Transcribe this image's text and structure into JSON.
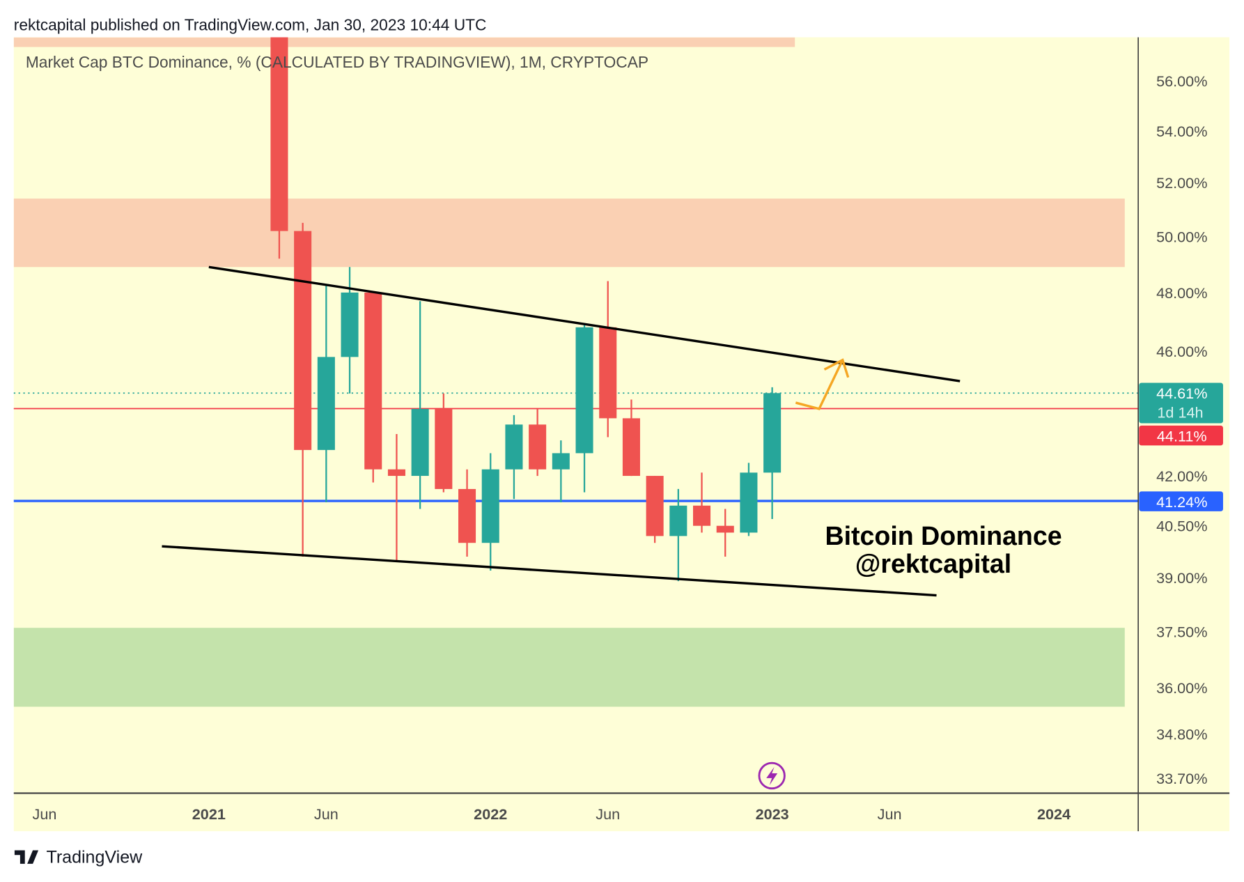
{
  "header": {
    "published": "rektcapital published on TradingView.com, Jan 30, 2023 10:44 UTC"
  },
  "footer": {
    "brand": "TradingView"
  },
  "colors": {
    "background": "#fefed7",
    "up": "#26a69a",
    "down": "#ef5350",
    "last_price": "#26a69a",
    "red_level": "#f23645",
    "blue_level": "#2962ff",
    "resistance_zone": "#fad0b3",
    "support_zone": "#c4e3ab",
    "arrow": "#f5a623"
  },
  "chart_data": {
    "type": "candlestick",
    "title": "Market Cap BTC Dominance, % (CALCULATED BY TRADINGVIEW), 1M, CRYPTOCAP",
    "timeframe": "1M",
    "y_scale": "log",
    "ylim": [
      33.4,
      57.8
    ],
    "y_ticks": [
      "56.00%",
      "54.00%",
      "52.00%",
      "50.00%",
      "48.00%",
      "46.00%",
      "42.00%",
      "40.50%",
      "39.00%",
      "37.50%",
      "36.00%",
      "34.80%",
      "33.70%"
    ],
    "y_tick_values": [
      56,
      54,
      52,
      50,
      48,
      46,
      42,
      40.5,
      39,
      37.5,
      36,
      34.8,
      33.7
    ],
    "x_ticks": [
      {
        "label": "Jun",
        "date": "2020-06",
        "bold": false
      },
      {
        "label": "2021",
        "date": "2021-01",
        "bold": true
      },
      {
        "label": "Jun",
        "date": "2021-06",
        "bold": false
      },
      {
        "label": "2022",
        "date": "2022-01",
        "bold": true
      },
      {
        "label": "Jun",
        "date": "2022-06",
        "bold": false
      },
      {
        "label": "2023",
        "date": "2023-01",
        "bold": true
      },
      {
        "label": "Jun",
        "date": "2023-06",
        "bold": false
      },
      {
        "label": "2024",
        "date": "2024-01",
        "bold": true
      }
    ],
    "candles": [
      {
        "date": "2021-04",
        "open": 61.0,
        "high": 62.0,
        "low": 49.2,
        "close": 50.2
      },
      {
        "date": "2021-05",
        "open": 50.2,
        "high": 50.5,
        "low": 39.6,
        "close": 42.8
      },
      {
        "date": "2021-06",
        "open": 42.8,
        "high": 48.3,
        "low": 41.2,
        "close": 45.8
      },
      {
        "date": "2021-07",
        "open": 45.8,
        "high": 48.9,
        "low": 44.6,
        "close": 48.0
      },
      {
        "date": "2021-08",
        "open": 48.0,
        "high": 48.0,
        "low": 41.8,
        "close": 42.2
      },
      {
        "date": "2021-09",
        "open": 42.2,
        "high": 43.3,
        "low": 39.5,
        "close": 42.0
      },
      {
        "date": "2021-10",
        "open": 42.0,
        "high": 47.7,
        "low": 41.0,
        "close": 44.1
      },
      {
        "date": "2021-11",
        "open": 44.1,
        "high": 44.6,
        "low": 41.5,
        "close": 41.6
      },
      {
        "date": "2021-12",
        "open": 41.6,
        "high": 42.2,
        "low": 39.6,
        "close": 40.0
      },
      {
        "date": "2022-01",
        "open": 40.0,
        "high": 42.7,
        "low": 39.2,
        "close": 42.2
      },
      {
        "date": "2022-02",
        "open": 42.2,
        "high": 43.9,
        "low": 41.3,
        "close": 43.6
      },
      {
        "date": "2022-03",
        "open": 43.6,
        "high": 44.1,
        "low": 42.0,
        "close": 42.2
      },
      {
        "date": "2022-04",
        "open": 42.2,
        "high": 43.1,
        "low": 41.2,
        "close": 42.7
      },
      {
        "date": "2022-05",
        "open": 42.7,
        "high": 46.9,
        "low": 41.5,
        "close": 46.8
      },
      {
        "date": "2022-06",
        "open": 46.8,
        "high": 48.4,
        "low": 43.2,
        "close": 43.8
      },
      {
        "date": "2022-07",
        "open": 43.8,
        "high": 44.4,
        "low": 42.0,
        "close": 42.0
      },
      {
        "date": "2022-08",
        "open": 42.0,
        "high": 42.0,
        "low": 40.0,
        "close": 40.2
      },
      {
        "date": "2022-09",
        "open": 40.2,
        "high": 41.6,
        "low": 38.9,
        "close": 41.1
      },
      {
        "date": "2022-10",
        "open": 41.1,
        "high": 42.1,
        "low": 40.3,
        "close": 40.5
      },
      {
        "date": "2022-11",
        "open": 40.5,
        "high": 41.0,
        "low": 39.6,
        "close": 40.3
      },
      {
        "date": "2022-12",
        "open": 40.3,
        "high": 42.4,
        "low": 40.2,
        "close": 42.1
      },
      {
        "date": "2023-01",
        "open": 42.1,
        "high": 44.8,
        "low": 40.7,
        "close": 44.61
      }
    ],
    "zones": [
      {
        "name": "resistance",
        "from": 48.9,
        "to": 51.4,
        "color": "#fad0b3"
      },
      {
        "name": "support",
        "from": 35.5,
        "to": 37.6,
        "color": "#c4e3ab"
      },
      {
        "name": "top",
        "from": 57.4,
        "to": 57.8,
        "color": "#fad0b3"
      }
    ],
    "trendlines": [
      {
        "name": "upper",
        "start": {
          "date": "2021-01",
          "value": 48.9
        },
        "end": {
          "date": "2023-09",
          "value": 45.0
        }
      },
      {
        "name": "lower",
        "start": {
          "date": "2020-11",
          "value": 39.9
        },
        "end": {
          "date": "2023-08",
          "value": 38.5
        }
      }
    ],
    "arrow": [
      {
        "date": "2023-02",
        "value": 44.3
      },
      {
        "date": "2023-03",
        "value": 44.1
      },
      {
        "date": "2023-04",
        "value": 45.7
      }
    ],
    "levels": [
      {
        "name": "last-price",
        "value": 44.61,
        "label": "44.61%",
        "sublabel": "1d 14h",
        "color": "#26a69a",
        "style": "dotted"
      },
      {
        "name": "red-level",
        "value": 44.11,
        "label": "44.11%",
        "color": "#f23645",
        "style": "solid"
      },
      {
        "name": "blue-level",
        "value": 41.24,
        "label": "41.24%",
        "color": "#2962ff",
        "style": "solid"
      }
    ],
    "annotation": {
      "line1": "Bitcoin Dominance",
      "line2": "@rektcapital"
    }
  }
}
